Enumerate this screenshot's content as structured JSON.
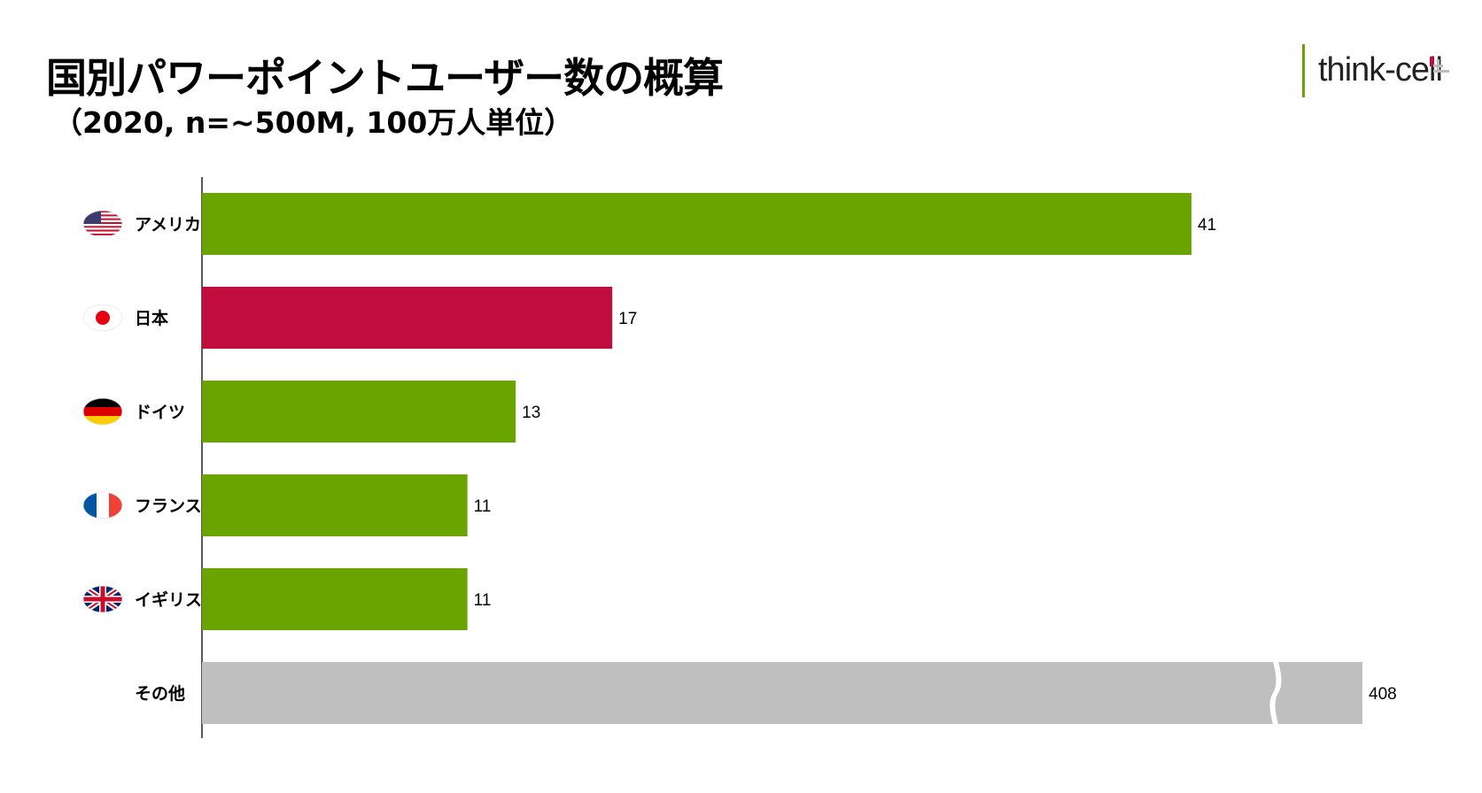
{
  "title": "国別パワーポイントユーザー数の概算",
  "subtitle": "（2020, n=~500M, 100万人単位）",
  "logo": {
    "text": "think-cell",
    "accent_color": "#6aa400"
  },
  "chart_data": {
    "type": "bar",
    "orientation": "horizontal",
    "title": "国別パワーポイントユーザー数の概算",
    "subtitle": "（2020, n=~500M, 100万人単位）",
    "categories": [
      "アメリカ",
      "日本",
      "ドイツ",
      "フランス",
      "イギリス",
      "その他"
    ],
    "values": [
      41,
      17,
      13,
      11,
      11,
      408
    ],
    "value_labels": [
      "41",
      "17",
      "13",
      "11",
      "11",
      "408"
    ],
    "flags": [
      "us-flag-icon",
      "japan-flag-icon",
      "germany-flag-icon",
      "france-flag-icon",
      "uk-flag-icon",
      ""
    ],
    "colors": [
      "#6aa400",
      "#c00d3e",
      "#6aa400",
      "#6aa400",
      "#6aa400",
      "#bfbfbf"
    ],
    "axis_break": {
      "category": "その他"
    },
    "grid": false,
    "legend": "none"
  }
}
